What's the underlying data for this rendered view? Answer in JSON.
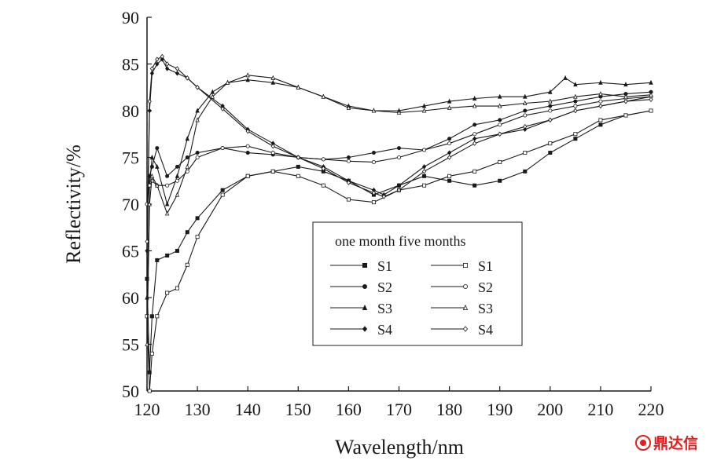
{
  "chart_data": {
    "type": "line",
    "xlabel": "Wavelength/nm",
    "ylabel": "Reflectivity/%",
    "xlim": [
      120,
      220
    ],
    "ylim": [
      50,
      90
    ],
    "xticks": [
      120,
      130,
      140,
      150,
      160,
      170,
      180,
      190,
      200,
      210,
      220
    ],
    "yticks": [
      50,
      55,
      60,
      65,
      70,
      75,
      80,
      85,
      90
    ],
    "grid": false,
    "legend": {
      "position": "center",
      "header": "one month five months",
      "columns": [
        "one month",
        "five months"
      ]
    },
    "series": [
      {
        "name": "S1",
        "group": "one month",
        "marker": "filled-square",
        "x": [
          120,
          120.5,
          121,
          122,
          124,
          126,
          128,
          130,
          135,
          140,
          145,
          150,
          155,
          160,
          165,
          170,
          175,
          180,
          185,
          190,
          195,
          200,
          205,
          210,
          215,
          220
        ],
        "y": [
          62,
          52,
          58,
          64,
          64.5,
          65,
          67,
          68.5,
          71.5,
          73,
          73.5,
          74,
          73.5,
          72.5,
          71,
          72,
          73,
          72.5,
          72,
          72.5,
          73.5,
          75.5,
          77,
          78.5,
          79.5,
          80
        ]
      },
      {
        "name": "S2",
        "group": "one month",
        "marker": "filled-circle",
        "x": [
          120,
          120.5,
          121,
          122,
          124,
          126,
          128,
          130,
          135,
          140,
          145,
          150,
          155,
          160,
          165,
          170,
          175,
          180,
          185,
          190,
          195,
          200,
          205,
          210,
          215,
          220
        ],
        "y": [
          70,
          73,
          74,
          76,
          73,
          74,
          75,
          75.5,
          76,
          75.5,
          75.3,
          75,
          74.8,
          75,
          75.5,
          76,
          75.8,
          77,
          78.5,
          79,
          80,
          80.5,
          81,
          81.5,
          81.8,
          82
        ]
      },
      {
        "name": "S3",
        "group": "one month",
        "marker": "filled-triangle",
        "x": [
          120,
          120.5,
          121,
          122,
          124,
          126,
          128,
          130,
          133,
          136,
          140,
          145,
          150,
          155,
          160,
          165,
          170,
          175,
          180,
          185,
          190,
          195,
          200,
          203,
          205,
          210,
          215,
          220
        ],
        "y": [
          60,
          72,
          75,
          74,
          70,
          73,
          77,
          80,
          82,
          83,
          83.3,
          83,
          82.5,
          81.5,
          80.5,
          80,
          80,
          80.5,
          81,
          81.3,
          81.5,
          81.5,
          82,
          83.5,
          82.8,
          83,
          82.8,
          83
        ]
      },
      {
        "name": "S4",
        "group": "one month",
        "marker": "filled-diamond",
        "x": [
          120,
          120.5,
          121,
          122,
          123,
          124,
          126,
          128,
          130,
          135,
          140,
          145,
          150,
          155,
          160,
          165,
          167,
          170,
          175,
          180,
          185,
          190,
          195,
          200,
          205,
          210,
          215,
          220
        ],
        "y": [
          65,
          80,
          84,
          85,
          85.5,
          84.5,
          84,
          83.5,
          82.5,
          80.5,
          78,
          76.5,
          75,
          74,
          72.5,
          71.5,
          71,
          72,
          74,
          75.5,
          77,
          77.5,
          78,
          79,
          80,
          80.5,
          81,
          81.5
        ]
      },
      {
        "name": "S1",
        "group": "five months",
        "marker": "open-square",
        "x": [
          120,
          120.5,
          121,
          122,
          124,
          126,
          128,
          130,
          135,
          140,
          145,
          150,
          155,
          160,
          165,
          170,
          175,
          180,
          185,
          190,
          195,
          200,
          205,
          210,
          215,
          220
        ],
        "y": [
          58,
          50,
          54,
          58,
          60.5,
          61,
          63.5,
          66.5,
          71,
          73,
          73.5,
          73,
          72,
          70.5,
          70.2,
          71.5,
          72,
          73,
          73.5,
          74.5,
          75.5,
          76.5,
          77.5,
          79,
          79.5,
          80
        ]
      },
      {
        "name": "S2",
        "group": "five months",
        "marker": "open-circle",
        "x": [
          120,
          120.5,
          121,
          122,
          124,
          126,
          128,
          130,
          135,
          140,
          145,
          150,
          155,
          160,
          165,
          170,
          175,
          180,
          185,
          190,
          195,
          200,
          205,
          210,
          215,
          220
        ],
        "y": [
          70,
          72,
          72.5,
          72,
          72,
          72.5,
          73.5,
          75,
          76,
          76.2,
          75.5,
          75,
          74.8,
          74.6,
          74.5,
          75,
          75.8,
          76.5,
          77.5,
          78.5,
          79.5,
          80,
          80.5,
          81,
          81.3,
          81.5
        ]
      },
      {
        "name": "S3",
        "group": "five months",
        "marker": "open-triangle",
        "x": [
          120,
          120.5,
          121,
          122,
          124,
          126,
          128,
          130,
          133,
          136,
          140,
          145,
          150,
          155,
          160,
          165,
          170,
          175,
          180,
          185,
          190,
          195,
          200,
          205,
          210,
          215,
          220
        ],
        "y": [
          55,
          70,
          73,
          72,
          69,
          71,
          74,
          79,
          81.5,
          83,
          83.8,
          83.5,
          82.5,
          81.5,
          80.3,
          80,
          79.8,
          80,
          80.3,
          80.5,
          80.5,
          80.8,
          81,
          81.5,
          81.8,
          81.5,
          81.7
        ]
      },
      {
        "name": "S4",
        "group": "five months",
        "marker": "open-diamond",
        "x": [
          120,
          120.5,
          121,
          122,
          123,
          124,
          126,
          128,
          130,
          135,
          140,
          145,
          150,
          155,
          160,
          165,
          167,
          170,
          175,
          180,
          185,
          190,
          195,
          200,
          205,
          210,
          215,
          220
        ],
        "y": [
          66,
          81,
          84.5,
          85.5,
          85.8,
          85,
          84.5,
          83.5,
          82.5,
          80.2,
          77.8,
          76.2,
          75,
          73.8,
          72.3,
          71.2,
          70.8,
          71.5,
          73.5,
          75,
          76.5,
          77.5,
          78.3,
          79,
          80,
          80.5,
          81,
          81.2
        ]
      }
    ]
  },
  "watermark": {
    "text": "鼎达信",
    "color": "#e02020"
  }
}
